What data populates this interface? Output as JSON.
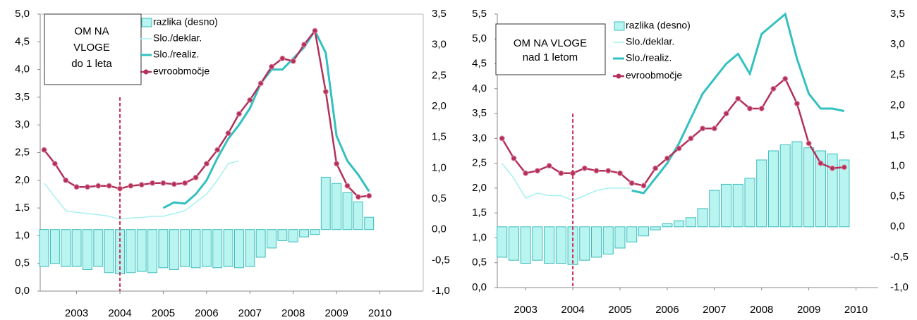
{
  "chart_data": [
    {
      "type": "combo",
      "title": [
        "OM NA",
        "VLOGE",
        "do 1 leta"
      ],
      "x": [
        2002.25,
        2002.5,
        2002.75,
        2003,
        2003.25,
        2003.5,
        2003.75,
        2004,
        2004.25,
        2004.5,
        2004.75,
        2005,
        2005.25,
        2005.5,
        2005.75,
        2006,
        2006.25,
        2006.5,
        2006.75,
        2007,
        2007.25,
        2007.5,
        2007.75,
        2008,
        2008.25,
        2008.5,
        2008.75,
        2009,
        2009.25,
        2009.5,
        2009.75
      ],
      "xlim": [
        2002.16,
        2011
      ],
      "xticks": [
        2003,
        2004,
        2005,
        2006,
        2007,
        2008,
        2009,
        2010
      ],
      "ylim": [
        0,
        5
      ],
      "yticks": [
        {
          "value": 0,
          "label": "0,0"
        },
        {
          "value": 0.5,
          "label": "0,5"
        },
        {
          "value": 1,
          "label": "1,0"
        },
        {
          "value": 1.5,
          "label": "1,5"
        },
        {
          "value": 2,
          "label": "2,0"
        },
        {
          "value": 2.5,
          "label": "2,5"
        },
        {
          "value": 3,
          "label": "3,0"
        },
        {
          "value": 3.5,
          "label": "3,5"
        },
        {
          "value": 4,
          "label": "4,0"
        },
        {
          "value": 4.5,
          "label": "4,5"
        },
        {
          "value": 5,
          "label": "5,0"
        }
      ],
      "y2lim": [
        -1,
        3.5
      ],
      "y2ticks": [
        {
          "value": -1,
          "label": "-1,0"
        },
        {
          "value": -0.5,
          "label": "-0,5"
        },
        {
          "value": 0,
          "label": "0,0"
        },
        {
          "value": 0.5,
          "label": "0,5"
        },
        {
          "value": 1,
          "label": "1,0"
        },
        {
          "value": 1.5,
          "label": "1,5"
        },
        {
          "value": 2,
          "label": "2,0"
        },
        {
          "value": 2.5,
          "label": "2,5"
        },
        {
          "value": 3,
          "label": "3,0"
        },
        {
          "value": 3.5,
          "label": "3,5"
        }
      ],
      "vline": {
        "x": 2004,
        "y": 3.5,
        "color": "#c8325a"
      },
      "series": [
        {
          "name": "razlika (desno)",
          "type": "bar",
          "axis": "y2",
          "color": "#b8f5f0",
          "edge": "#3cbcbc",
          "values": [
            -0.6,
            -0.55,
            -0.6,
            -0.6,
            -0.65,
            -0.6,
            -0.7,
            -0.72,
            -0.7,
            -0.68,
            -0.7,
            -0.62,
            -0.65,
            -0.6,
            -0.62,
            -0.6,
            -0.62,
            -0.6,
            -0.62,
            -0.6,
            -0.45,
            -0.3,
            -0.18,
            -0.2,
            -0.12,
            -0.08,
            0.85,
            0.75,
            0.6,
            0.45,
            0.2
          ]
        },
        {
          "name": "Slo./deklar.",
          "type": "line",
          "color": "#a8f0f0",
          "values": [
            1.95,
            1.7,
            1.45,
            1.42,
            1.4,
            1.38,
            1.35,
            1.3,
            1.32,
            1.33,
            1.35,
            1.35,
            1.4,
            1.45,
            1.6,
            1.75,
            2.0,
            2.3,
            2.35,
            null,
            null,
            null,
            null,
            null,
            null,
            null,
            null,
            null,
            null,
            null,
            null
          ]
        },
        {
          "name": "Slo./realiz.",
          "type": "line",
          "color": "#33c0c0",
          "values": [
            null,
            null,
            null,
            null,
            null,
            null,
            null,
            null,
            null,
            null,
            null,
            1.5,
            1.6,
            1.58,
            1.75,
            2.0,
            2.4,
            2.75,
            3.0,
            3.3,
            3.75,
            4.0,
            4.0,
            4.2,
            4.4,
            4.7,
            4.3,
            2.8,
            2.35,
            2.1,
            1.8
          ]
        },
        {
          "name": "evroobmočje",
          "type": "line",
          "marker": true,
          "color": "#b3305a",
          "values": [
            2.55,
            2.3,
            2.0,
            1.88,
            1.88,
            1.9,
            1.9,
            1.85,
            1.9,
            1.92,
            1.95,
            1.95,
            1.93,
            1.95,
            2.05,
            2.3,
            2.55,
            2.85,
            3.2,
            3.45,
            3.75,
            4.05,
            4.2,
            4.15,
            4.45,
            4.7,
            3.6,
            2.3,
            1.9,
            1.7,
            1.72
          ]
        }
      ]
    },
    {
      "type": "combo",
      "title": [
        "OM NA VLOGE",
        "nad 1 letom"
      ],
      "x": [
        2002.5,
        2002.75,
        2003,
        2003.25,
        2003.5,
        2003.75,
        2004,
        2004.25,
        2004.5,
        2004.75,
        2005,
        2005.25,
        2005.5,
        2005.75,
        2006,
        2006.25,
        2006.5,
        2006.75,
        2007,
        2007.25,
        2007.5,
        2007.75,
        2008,
        2008.25,
        2008.5,
        2008.75,
        2009,
        2009.25,
        2009.5,
        2009.75
      ],
      "xlim": [
        2002.4,
        2010.47
      ],
      "xticks": [
        2003,
        2004,
        2005,
        2006,
        2007,
        2008,
        2009,
        2010
      ],
      "ylim": [
        0,
        5.5
      ],
      "yticks": [
        {
          "value": 0,
          "label": "0,0"
        },
        {
          "value": 0.5,
          "label": "0,5"
        },
        {
          "value": 1,
          "label": "1,0"
        },
        {
          "value": 1.5,
          "label": "1,5"
        },
        {
          "value": 2,
          "label": "2,0"
        },
        {
          "value": 2.5,
          "label": "2,5"
        },
        {
          "value": 3,
          "label": "3,0"
        },
        {
          "value": 3.5,
          "label": "3,5"
        },
        {
          "value": 4,
          "label": "4,0"
        },
        {
          "value": 4.5,
          "label": "4,5"
        },
        {
          "value": 5,
          "label": "5,0"
        },
        {
          "value": 5.5,
          "label": "5,5"
        }
      ],
      "y2lim": [
        -1,
        3.5
      ],
      "y2ticks": [
        {
          "value": -1,
          "label": "-1,0"
        },
        {
          "value": -0.5,
          "label": "-0,5"
        },
        {
          "value": 0,
          "label": "0,0"
        },
        {
          "value": 0.5,
          "label": "0,5"
        },
        {
          "value": 1,
          "label": "1,0"
        },
        {
          "value": 1.5,
          "label": "1,5"
        },
        {
          "value": 2,
          "label": "2,0"
        },
        {
          "value": 2.5,
          "label": "2,5"
        },
        {
          "value": 3,
          "label": "3,0"
        },
        {
          "value": 3.5,
          "label": "3,5"
        }
      ],
      "vline": {
        "x": 2004,
        "y": 3.5,
        "color": "#c8325a"
      },
      "series": [
        {
          "name": "razlika (desno)",
          "type": "bar",
          "axis": "y2",
          "color": "#b8f5f0",
          "edge": "#3cbcbc",
          "values": [
            -0.5,
            -0.55,
            -0.6,
            -0.55,
            -0.6,
            -0.6,
            -0.62,
            -0.55,
            -0.5,
            -0.45,
            -0.35,
            -0.25,
            -0.15,
            -0.05,
            0.05,
            0.1,
            0.15,
            0.3,
            0.6,
            0.7,
            0.7,
            0.8,
            1.1,
            1.25,
            1.35,
            1.4,
            1.3,
            1.25,
            1.2,
            1.1
          ]
        },
        {
          "name": "Slo./deklar.",
          "type": "line",
          "color": "#a8f0f0",
          "values": [
            2.5,
            2.2,
            1.8,
            1.9,
            1.85,
            1.85,
            1.75,
            1.85,
            1.95,
            2.0,
            2.0,
            2.0,
            null,
            null,
            null,
            null,
            null,
            null,
            null,
            null,
            null,
            null,
            null,
            null,
            null,
            null,
            null,
            null,
            null,
            null
          ]
        },
        {
          "name": "Slo./realiz.",
          "type": "line",
          "color": "#33c0c0",
          "values": [
            null,
            null,
            null,
            null,
            null,
            null,
            null,
            null,
            null,
            null,
            null,
            1.95,
            1.9,
            2.2,
            2.5,
            2.9,
            3.4,
            3.9,
            4.2,
            4.5,
            4.7,
            4.3,
            5.1,
            5.3,
            5.5,
            4.6,
            3.9,
            3.6,
            3.6,
            3.55
          ]
        },
        {
          "name": "evroobmočje",
          "type": "line",
          "marker": true,
          "color": "#b3305a",
          "values": [
            3.0,
            2.6,
            2.3,
            2.35,
            2.45,
            2.3,
            2.3,
            2.4,
            2.35,
            2.35,
            2.3,
            2.1,
            2.05,
            2.4,
            2.6,
            2.8,
            3.0,
            3.2,
            3.2,
            3.5,
            3.8,
            3.6,
            3.6,
            4.0,
            4.2,
            3.7,
            2.9,
            2.5,
            2.4,
            2.42
          ]
        }
      ]
    }
  ]
}
